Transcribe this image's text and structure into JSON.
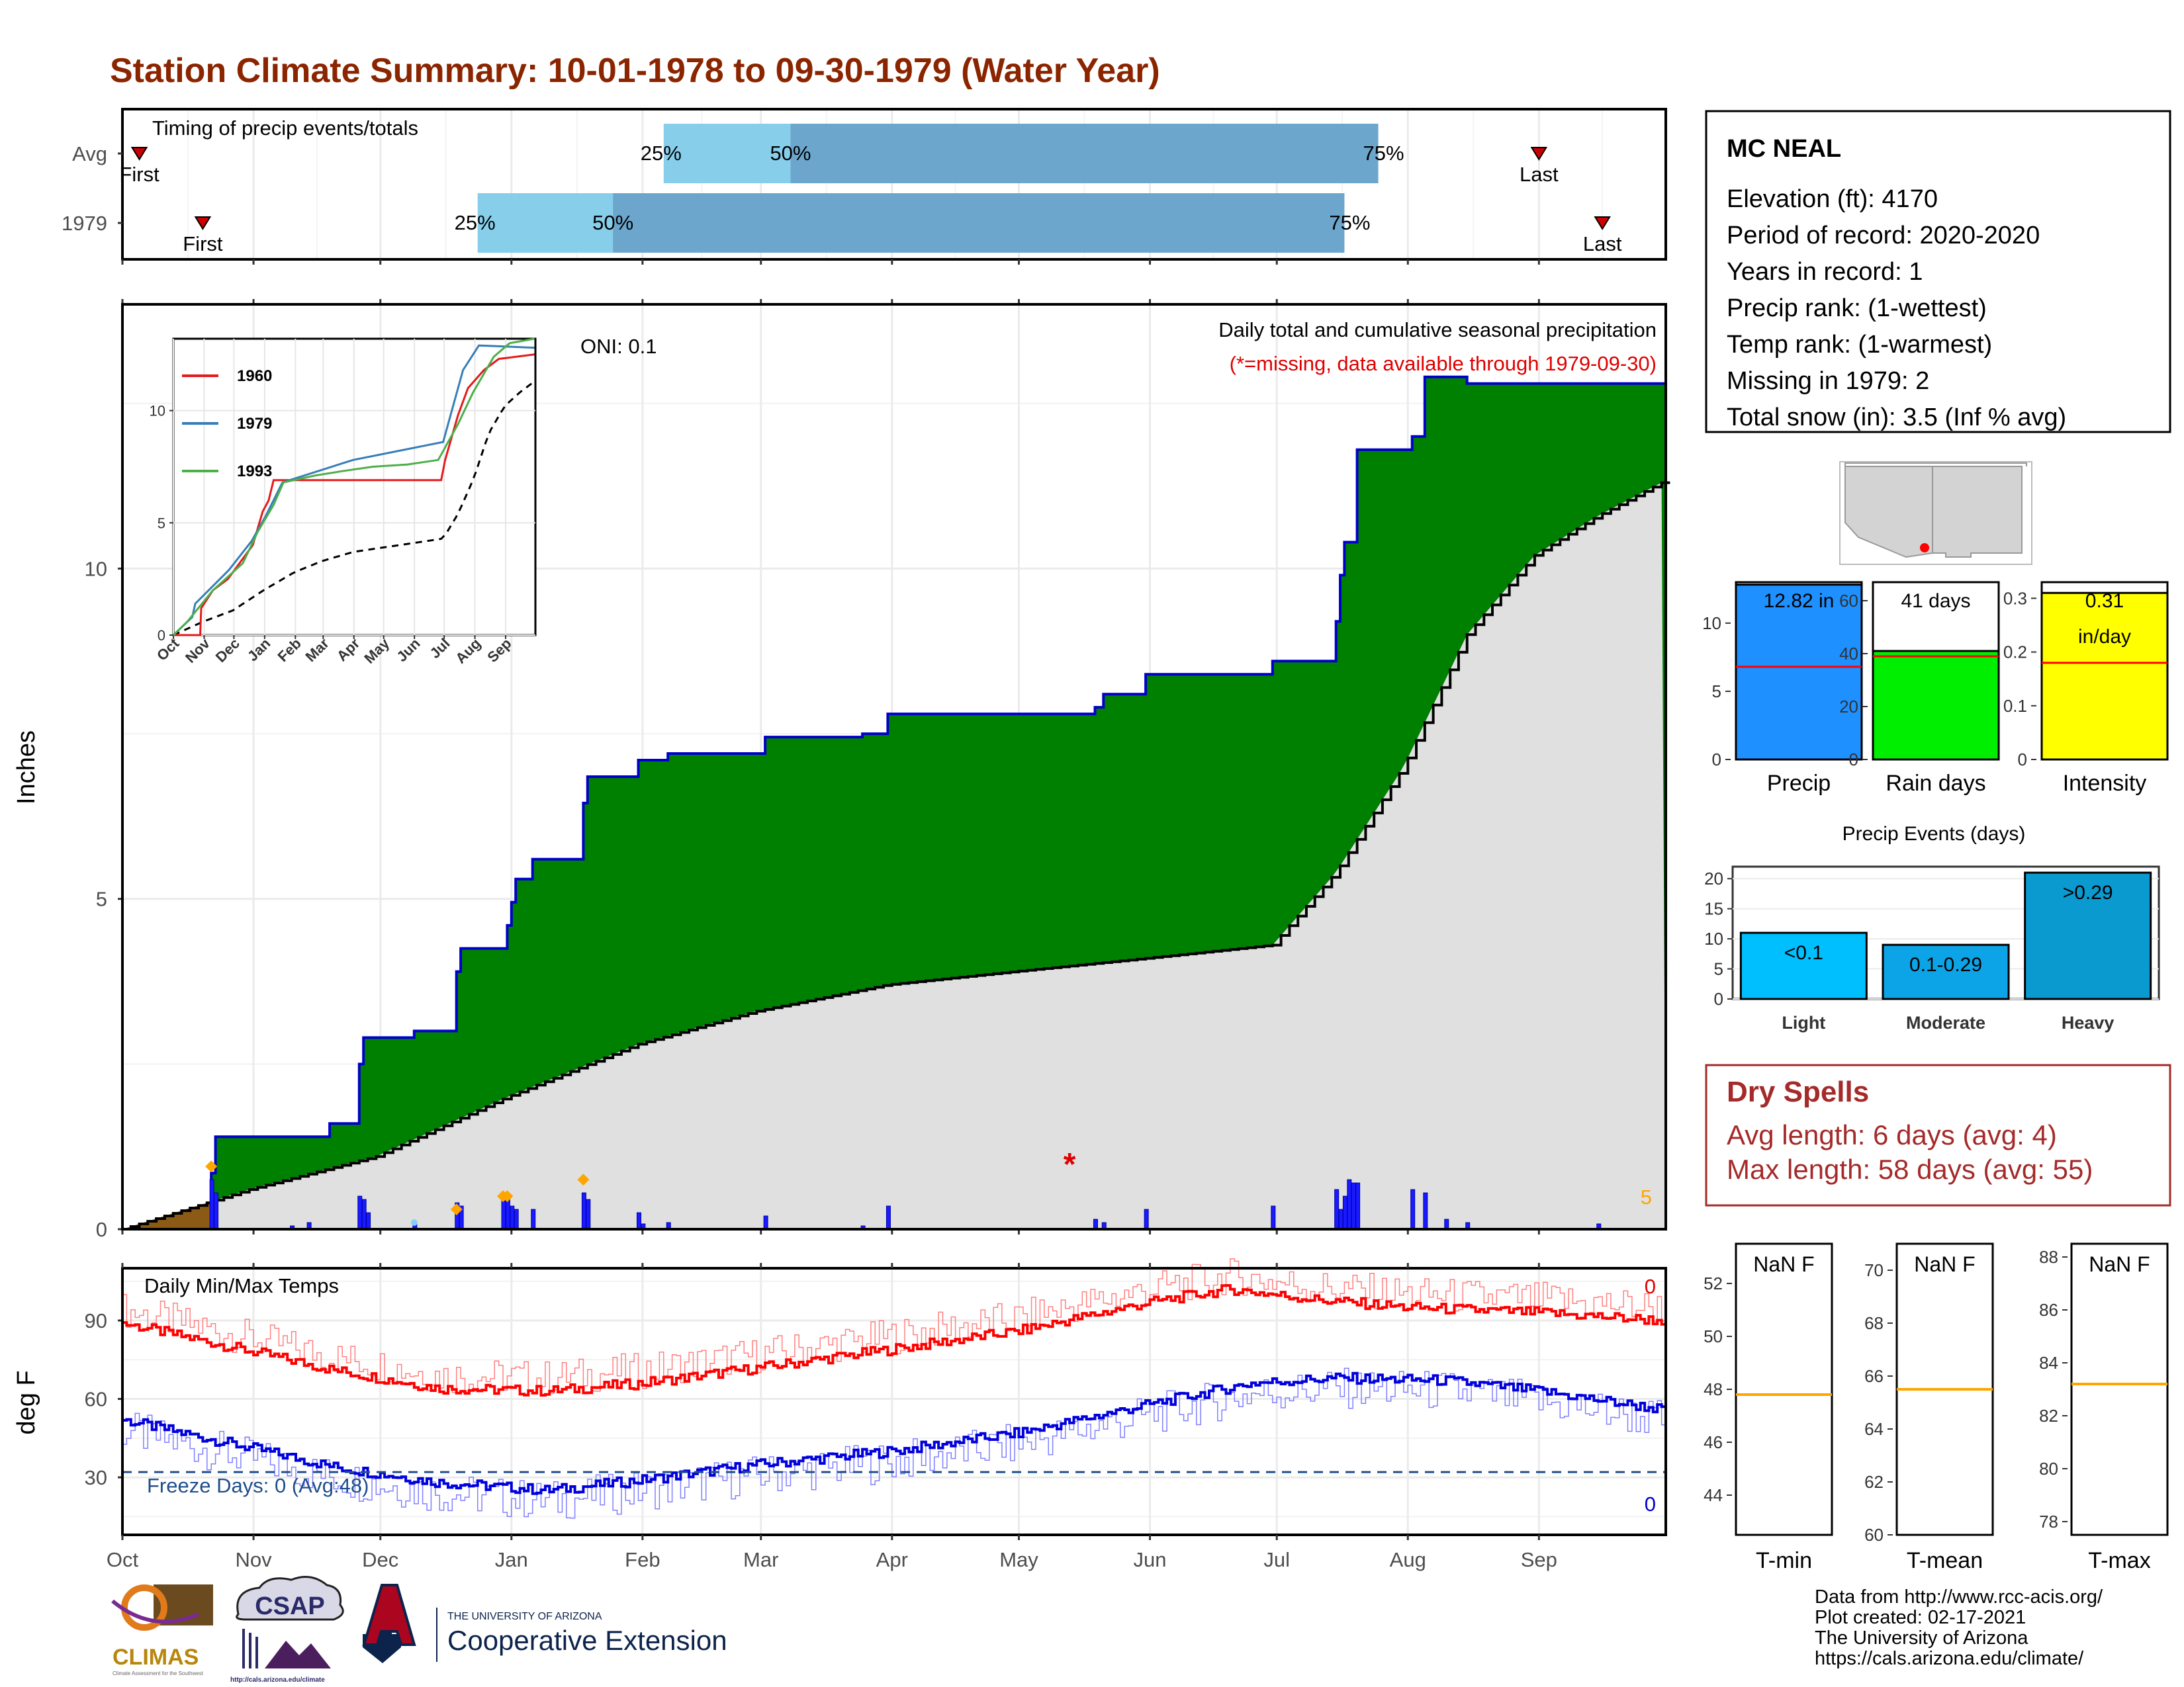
{
  "title": "Station Climate Summary: 10-01-1978 to 09-30-1979 (Water Year)",
  "colors": {
    "title": "#8b2500",
    "cum_fill": "#008000",
    "cum_line": "#0000cc",
    "avg_fill": "#e0e0e0",
    "daily_bar": "#1a1aff",
    "tmax": "#ff0000",
    "tmin": "#0000dd",
    "freeze_line": "#1f4e8c",
    "dry_spells": "#a52a2a",
    "precip_bar": "#1e90ff",
    "rain_bar": "#00ee00",
    "intensity_bar": "#ffff00",
    "events_bar": "#00a8e0",
    "timing_light": "#87ceeb",
    "timing_dark": "#6ca6cd",
    "marker": "#cc0000",
    "median": "#ffa500"
  },
  "timing": {
    "title": "Timing of precip events/totals",
    "rows": [
      {
        "label": "Avg",
        "first": "10-05",
        "q25": "02-06",
        "q50": "03-08",
        "q75": "07-25",
        "last": "09-01",
        "first_label": "First",
        "last_label": "Last"
      },
      {
        "label": "1979",
        "first": "10-20",
        "q25": "12-24",
        "q50": "01-25",
        "q75": "07-17",
        "last": "09-16",
        "first_label": "First",
        "last_label": "Last"
      }
    ],
    "q25_label": "25%",
    "q50_label": "50%",
    "q75_label": "75%"
  },
  "precip_chart": {
    "ylabel": "Inches",
    "yticks": [
      0,
      5,
      10
    ],
    "ylim": [
      0,
      14
    ],
    "oni_label": "ONI: 0.1",
    "legend_title": "Daily total and cumulative seasonal precipitation",
    "missing_note": "(*=missing, data available through 1979-09-30)",
    "right_label": "5",
    "cumulative_steps": [
      [
        "10-01",
        0.0
      ],
      [
        "10-22",
        0.85
      ],
      [
        "10-23",
        1.4
      ],
      [
        "11-19",
        1.6
      ],
      [
        "11-26",
        2.5
      ],
      [
        "11-27",
        2.9
      ],
      [
        "12-09",
        3.0
      ],
      [
        "12-19",
        3.9
      ],
      [
        "12-20",
        4.25
      ],
      [
        "12-31",
        4.6
      ],
      [
        "01-01",
        4.95
      ],
      [
        "01-02",
        5.3
      ],
      [
        "01-06",
        5.6
      ],
      [
        "01-18",
        6.45
      ],
      [
        "01-19",
        6.85
      ],
      [
        "01-31",
        7.1
      ],
      [
        "02-07",
        7.2
      ],
      [
        "03-02",
        7.45
      ],
      [
        "03-25",
        7.5
      ],
      [
        "03-31",
        7.8
      ],
      [
        "05-19",
        7.9
      ],
      [
        "05-21",
        8.1
      ],
      [
        "05-31",
        8.4
      ],
      [
        "06-30",
        8.6
      ],
      [
        "07-15",
        9.2
      ],
      [
        "07-16",
        9.9
      ],
      [
        "07-17",
        10.4
      ],
      [
        "07-20",
        11.8
      ],
      [
        "08-02",
        12.0
      ],
      [
        "08-05",
        12.9
      ],
      [
        "08-10",
        12.9
      ],
      [
        "08-15",
        12.8
      ],
      [
        "09-30",
        12.8
      ]
    ],
    "avg_cumulative": [
      [
        "10-01",
        0.0
      ],
      [
        "10-31",
        0.6
      ],
      [
        "11-30",
        1.1
      ],
      [
        "12-31",
        2.0
      ],
      [
        "01-31",
        2.8
      ],
      [
        "02-28",
        3.3
      ],
      [
        "03-31",
        3.7
      ],
      [
        "04-30",
        3.9
      ],
      [
        "05-31",
        4.1
      ],
      [
        "06-30",
        4.3
      ],
      [
        "07-15",
        5.4
      ],
      [
        "07-31",
        7.0
      ],
      [
        "08-15",
        9.0
      ],
      [
        "08-31",
        10.2
      ],
      [
        "09-15",
        10.8
      ],
      [
        "09-30",
        11.3
      ]
    ],
    "daily_bars": [
      [
        "10-22",
        0.75
      ],
      [
        "10-23",
        0.55
      ],
      [
        "11-10",
        0.05
      ],
      [
        "11-14",
        0.1
      ],
      [
        "11-26",
        0.5
      ],
      [
        "11-27",
        0.45
      ],
      [
        "11-28",
        0.25
      ],
      [
        "12-09",
        0.1
      ],
      [
        "12-19",
        0.4
      ],
      [
        "12-20",
        0.35
      ],
      [
        "12-30",
        0.45
      ],
      [
        "12-31",
        0.45
      ],
      [
        "01-01",
        0.35
      ],
      [
        "01-02",
        0.3
      ],
      [
        "01-06",
        0.3
      ],
      [
        "01-18",
        0.55
      ],
      [
        "01-19",
        0.45
      ],
      [
        "01-31",
        0.25
      ],
      [
        "02-01",
        0.08
      ],
      [
        "02-07",
        0.1
      ],
      [
        "03-02",
        0.2
      ],
      [
        "03-25",
        0.05
      ],
      [
        "03-31",
        0.35
      ],
      [
        "05-19",
        0.15
      ],
      [
        "05-21",
        0.1
      ],
      [
        "05-31",
        0.3
      ],
      [
        "06-30",
        0.35
      ],
      [
        "07-15",
        0.6
      ],
      [
        "07-16",
        0.3
      ],
      [
        "07-17",
        0.5
      ],
      [
        "07-18",
        0.75
      ],
      [
        "07-19",
        0.7
      ],
      [
        "07-20",
        0.7
      ],
      [
        "08-02",
        0.6
      ],
      [
        "08-05",
        0.55
      ],
      [
        "08-10",
        0.15
      ],
      [
        "08-15",
        0.1
      ],
      [
        "09-15",
        0.08
      ]
    ],
    "snow_markers": [
      [
        "10-22",
        0.95
      ],
      [
        "12-19",
        0.3
      ],
      [
        "12-30",
        0.5
      ],
      [
        "12-31",
        0.5
      ],
      [
        "01-18",
        0.75
      ]
    ],
    "missing_markers": [
      [
        "05-13",
        1.0
      ]
    ]
  },
  "inset": {
    "series": [
      {
        "name": "1960",
        "color": "#e41a1c"
      },
      {
        "name": "1979",
        "color": "#377eb8"
      },
      {
        "name": "1993",
        "color": "#4daf4a"
      }
    ],
    "yticks": [
      0,
      5,
      10
    ],
    "xticks": [
      "Oct",
      "Nov",
      "Dec",
      "Jan",
      "Feb",
      "Mar",
      "Apr",
      "May",
      "Jun",
      "Jul",
      "Aug",
      "Sep"
    ]
  },
  "temp_chart": {
    "ylabel": "deg F",
    "yticks": [
      30,
      60,
      90
    ],
    "title": "Daily Min/Max Temps",
    "freeze_label": "Freeze Days: 0 (Avg:48)",
    "top_right_label": "0",
    "bottom_right_label": "0"
  },
  "months": [
    "Oct",
    "Nov",
    "Dec",
    "Jan",
    "Feb",
    "Mar",
    "Apr",
    "May",
    "Jun",
    "Jul",
    "Aug",
    "Sep"
  ],
  "station": {
    "name": "MC NEAL",
    "lines": [
      "Elevation (ft): 4170",
      "Period of record: 2020-2020",
      "Years in record: 1",
      "Precip rank:  (1-wettest)",
      "Temp rank:  (1-warmest)",
      "Missing in 1979: 2",
      "Total snow (in): 3.5 (Inf % avg)"
    ]
  },
  "mini_bars": [
    {
      "label": "Precip",
      "value": 12.82,
      "avg": 6.8,
      "ymax": 13.0,
      "yticks": [
        0,
        5,
        10
      ],
      "bar_label": "12.82 in"
    },
    {
      "label": "Rain days",
      "value": 41,
      "avg": 39,
      "ymax": 67,
      "yticks": [
        0,
        20,
        40,
        60
      ],
      "bar_label": "41 days"
    },
    {
      "label": "Intensity",
      "value": 0.31,
      "avg": 0.18,
      "ymax": 0.33,
      "yticks": [
        0.0,
        0.1,
        0.2,
        0.3
      ],
      "bar_label": "0.31",
      "bar_label2": "in/day"
    }
  ],
  "events": {
    "title": "Precip Events (days)",
    "yticks": [
      0,
      5,
      10,
      15,
      20
    ],
    "categories": [
      "Light",
      "Moderate",
      "Heavy"
    ],
    "values": [
      11,
      9,
      21
    ],
    "labels": [
      "<0.1",
      "0.1-0.29",
      ">0.29"
    ]
  },
  "dry_spells": {
    "title": "Dry Spells",
    "avg_line": "Avg length: 6 days (avg: 4)",
    "max_line": "Max length: 58 days (avg: 55)"
  },
  "temp_boxes": [
    {
      "label": "T-min",
      "value_label": "NaN F",
      "yticks": [
        44,
        46,
        48,
        50,
        52
      ],
      "ylim": [
        42.5,
        53.5
      ],
      "median": 47.8
    },
    {
      "label": "T-mean",
      "value_label": "NaN F",
      "yticks": [
        60,
        62,
        64,
        66,
        68,
        70
      ],
      "ylim": [
        60,
        71
      ],
      "median": 65.5
    },
    {
      "label": "T-max",
      "value_label": "NaN F",
      "yticks": [
        78,
        80,
        82,
        84,
        86,
        88
      ],
      "ylim": [
        77.5,
        88.5
      ],
      "median": 83.2
    }
  ],
  "logos": {
    "climas": "CLIMAS",
    "climas_sub": "Climate Assessment for the Southwest",
    "csap": "CSAP",
    "csap_url": "http://cals.arizona.edu/climate",
    "ua_small": "THE UNIVERSITY OF ARIZONA",
    "ua_big": "Cooperative Extension"
  },
  "footer": [
    "Data from http://www.rcc-acis.org/",
    "Plot created: 02-17-2021",
    "The University of Arizona",
    "https://cals.arizona.edu/climate/"
  ]
}
